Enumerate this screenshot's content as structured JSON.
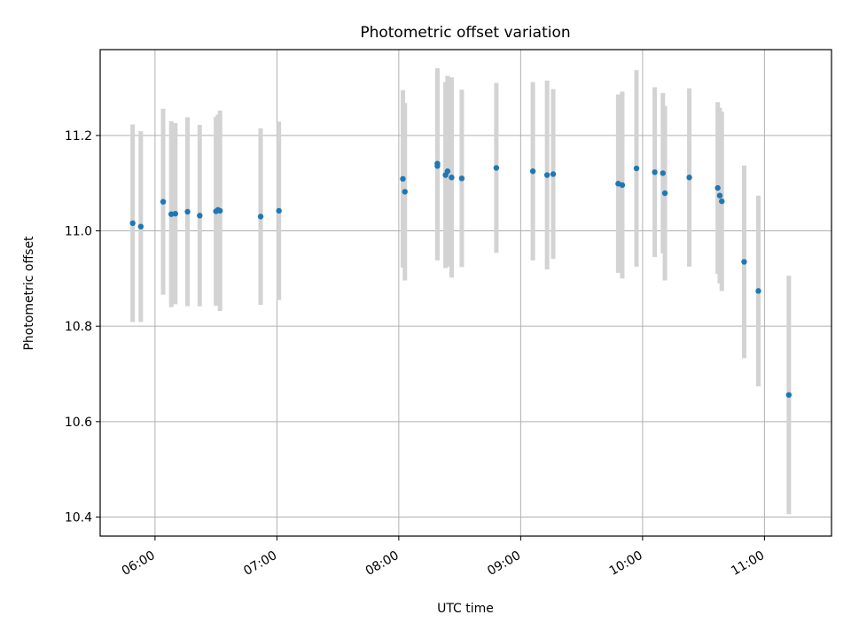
{
  "chart_data": {
    "type": "scatter",
    "title": "Photometric offset variation",
    "xlabel": "UTC time",
    "ylabel": "Photometric offset",
    "x_unit": "UTC",
    "xlim": [
      "05:33",
      "11:33"
    ],
    "ylim": [
      10.36,
      11.38
    ],
    "grid": true,
    "x_ticks": [
      "06:00",
      "07:00",
      "08:00",
      "09:00",
      "10:00",
      "11:00"
    ],
    "y_ticks": [
      "10.4",
      "10.6",
      "10.8",
      "11.0",
      "11.2"
    ],
    "colors": {
      "points": "#1f77b4",
      "error_bars": "#d3d3d3",
      "grid": "#b0b0b0"
    },
    "points": [
      {
        "t": "05:49",
        "y": 11.016,
        "err": 0.207
      },
      {
        "t": "05:53",
        "y": 11.009,
        "err": 0.2
      },
      {
        "t": "06:04",
        "y": 11.061,
        "err": 0.195
      },
      {
        "t": "06:08",
        "y": 11.035,
        "err": 0.195
      },
      {
        "t": "06:10",
        "y": 11.036,
        "err": 0.19
      },
      {
        "t": "06:16",
        "y": 11.04,
        "err": 0.198
      },
      {
        "t": "06:22",
        "y": 11.032,
        "err": 0.19
      },
      {
        "t": "06:30",
        "y": 11.041,
        "err": 0.198
      },
      {
        "t": "06:31",
        "y": 11.044,
        "err": 0.2
      },
      {
        "t": "06:32",
        "y": 11.042,
        "err": 0.21
      },
      {
        "t": "06:52",
        "y": 11.03,
        "err": 0.185
      },
      {
        "t": "07:01",
        "y": 11.042,
        "err": 0.187
      },
      {
        "t": "08:02",
        "y": 11.109,
        "err": 0.186
      },
      {
        "t": "08:03",
        "y": 11.082,
        "err": 0.186
      },
      {
        "t": "08:19",
        "y": 11.141,
        "err": 0.2
      },
      {
        "t": "08:19",
        "y": 11.136,
        "err": 0.198
      },
      {
        "t": "08:23",
        "y": 11.117,
        "err": 0.195
      },
      {
        "t": "08:24",
        "y": 11.125,
        "err": 0.2
      },
      {
        "t": "08:26",
        "y": 11.112,
        "err": 0.21
      },
      {
        "t": "08:31",
        "y": 11.11,
        "err": 0.186
      },
      {
        "t": "08:48",
        "y": 11.132,
        "err": 0.178
      },
      {
        "t": "09:06",
        "y": 11.125,
        "err": 0.187
      },
      {
        "t": "09:13",
        "y": 11.117,
        "err": 0.198
      },
      {
        "t": "09:16",
        "y": 11.119,
        "err": 0.178
      },
      {
        "t": "09:48",
        "y": 11.099,
        "err": 0.187
      },
      {
        "t": "09:50",
        "y": 11.096,
        "err": 0.196
      },
      {
        "t": "09:57",
        "y": 11.131,
        "err": 0.206
      },
      {
        "t": "10:06",
        "y": 11.123,
        "err": 0.178
      },
      {
        "t": "10:10",
        "y": 11.121,
        "err": 0.168
      },
      {
        "t": "10:11",
        "y": 11.079,
        "err": 0.183
      },
      {
        "t": "10:23",
        "y": 11.112,
        "err": 0.187
      },
      {
        "t": "10:37",
        "y": 11.09,
        "err": 0.18
      },
      {
        "t": "10:38",
        "y": 11.074,
        "err": 0.184
      },
      {
        "t": "10:39",
        "y": 11.062,
        "err": 0.188
      },
      {
        "t": "10:50",
        "y": 10.935,
        "err": 0.202
      },
      {
        "t": "10:57",
        "y": 10.874,
        "err": 0.2
      },
      {
        "t": "11:12",
        "y": 10.656,
        "err": 0.25
      }
    ]
  }
}
